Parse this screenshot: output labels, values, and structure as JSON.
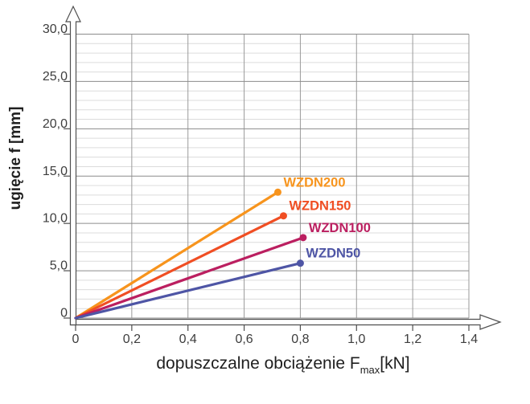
{
  "chart_data": {
    "type": "line",
    "title": "",
    "xlabel": {
      "text": "dopuszczalne obciążenie F",
      "subscript": "max",
      "suffix": "[kN]"
    },
    "ylabel": "ugięcie f [mm]",
    "xlim": [
      0,
      1.4
    ],
    "ylim": [
      0,
      30
    ],
    "grid": {
      "x_step": 0.2,
      "y_minor_step": 1,
      "y_major_step": 5,
      "minor_color": "#dcdcdc",
      "major_color": "#8c8c8c",
      "vertical_color": "#9a9a9a"
    },
    "axis_color": "#4f4f4f",
    "tick_text_color": "#3d3d3d",
    "legend_position": "inline-end-labels",
    "x_ticks": [
      {
        "value": 0,
        "label": "0"
      },
      {
        "value": 0.2,
        "label": "0,2"
      },
      {
        "value": 0.4,
        "label": "0,4"
      },
      {
        "value": 0.6,
        "label": "0,6"
      },
      {
        "value": 0.8,
        "label": "0,8"
      },
      {
        "value": 1.0,
        "label": "1,0"
      },
      {
        "value": 1.2,
        "label": "1,2"
      },
      {
        "value": 1.4,
        "label": "1,4"
      }
    ],
    "y_ticks": [
      {
        "value": 0,
        "label": "0"
      },
      {
        "value": 5,
        "label": "5,0"
      },
      {
        "value": 10,
        "label": "10,0"
      },
      {
        "value": 15,
        "label": "15,0"
      },
      {
        "value": 20,
        "label": "20,0"
      },
      {
        "value": 25,
        "label": "25,0"
      },
      {
        "value": 30,
        "label": "30,0"
      }
    ],
    "series": [
      {
        "name": "WZDN200",
        "color": "#F7941D",
        "points": [
          [
            0,
            0
          ],
          [
            0.72,
            13.3
          ]
        ]
      },
      {
        "name": "WZDN150",
        "color": "#F04E23",
        "points": [
          [
            0,
            0
          ],
          [
            0.74,
            10.8
          ]
        ]
      },
      {
        "name": "WZDN100",
        "color": "#BB1F60",
        "points": [
          [
            0,
            0
          ],
          [
            0.81,
            8.5
          ]
        ]
      },
      {
        "name": "WZDN50",
        "color": "#4E55A5",
        "points": [
          [
            0,
            0
          ],
          [
            0.8,
            5.8
          ]
        ]
      }
    ]
  }
}
